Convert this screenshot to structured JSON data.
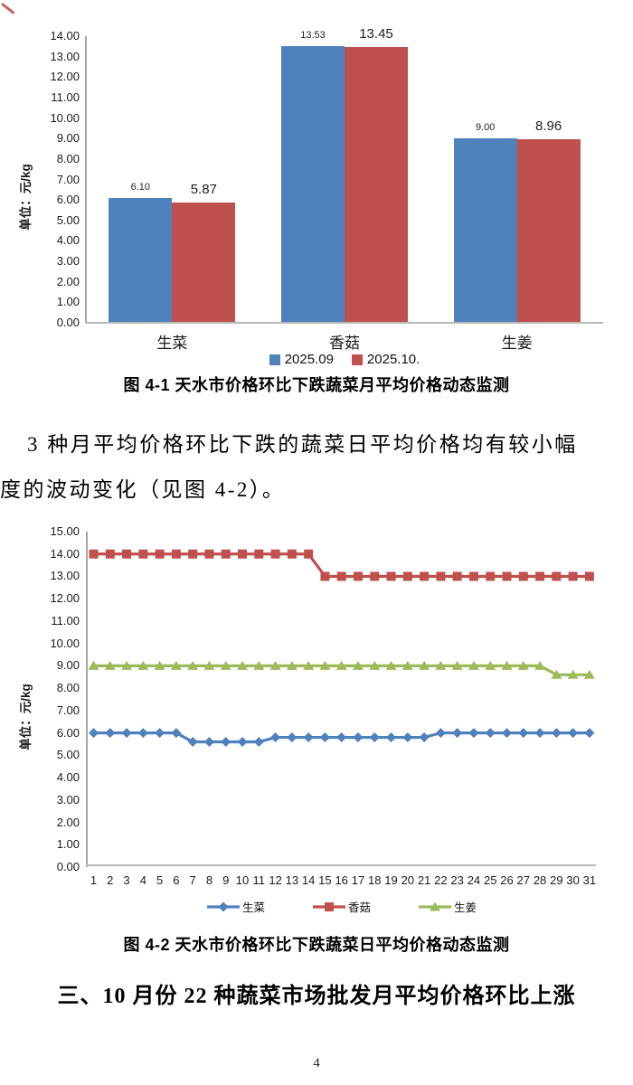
{
  "page": {
    "number": "4"
  },
  "paragraph": {
    "line1": "3 种月平均价格环比下跌的蔬菜日平均价格均有较小幅",
    "line2": "度的波动变化（见图 4-2）。"
  },
  "section_heading": "三、10 月份 22 种蔬菜市场批发月平均价格环比上涨",
  "colors": {
    "blue": "#4F81BD",
    "red": "#C0504D",
    "green": "#9BBB59",
    "axis": "#A6A6A6"
  },
  "chart_data": [
    {
      "type": "bar",
      "title": "图 4-1  天水市价格环比下跌蔬菜月平均价格动态监测",
      "ylabel": "单位：元/kg",
      "categories": [
        "生菜",
        "香菇",
        "生姜"
      ],
      "series": [
        {
          "name": "2025.09",
          "color": "#4F81BD",
          "values": [
            6.1,
            13.53,
            9.0
          ],
          "value_labels": [
            "6.10",
            "13.53",
            "9.00"
          ],
          "label_size": "small"
        },
        {
          "name": "2025.10.",
          "color": "#C0504D",
          "values": [
            5.87,
            13.45,
            8.96
          ],
          "value_labels": [
            "5.87",
            "13.45",
            "8.96"
          ],
          "label_size": "large"
        }
      ],
      "ylim": [
        0,
        14
      ],
      "yticks": [
        "14.00",
        "13.00",
        "12.00",
        "11.00",
        "10.00",
        "9.00",
        "8.00",
        "7.00",
        "6.00",
        "5.00",
        "4.00",
        "3.00",
        "2.00",
        "1.00",
        "0.00"
      ],
      "grid": false,
      "legend_position": "bottom"
    },
    {
      "type": "line",
      "title": "图 4-2  天水市价格环比下跌蔬菜日平均价格动态监测",
      "ylabel": "单位：元/kg",
      "x": [
        1,
        2,
        3,
        4,
        5,
        6,
        7,
        8,
        9,
        10,
        11,
        12,
        13,
        14,
        15,
        16,
        17,
        18,
        19,
        20,
        21,
        22,
        23,
        24,
        25,
        26,
        27,
        28,
        29,
        30,
        31
      ],
      "series": [
        {
          "name": "生菜",
          "color": "#4F81BD",
          "marker": "diamond",
          "values": [
            6,
            6,
            6,
            6,
            6,
            6,
            5.6,
            5.6,
            5.6,
            5.6,
            5.6,
            5.8,
            5.8,
            5.8,
            5.8,
            5.8,
            5.8,
            5.8,
            5.8,
            5.8,
            5.8,
            6,
            6,
            6,
            6,
            6,
            6,
            6,
            6,
            6,
            6
          ]
        },
        {
          "name": "香菇",
          "color": "#C0504D",
          "marker": "square",
          "values": [
            14,
            14,
            14,
            14,
            14,
            14,
            14,
            14,
            14,
            14,
            14,
            14,
            14,
            14,
            13,
            13,
            13,
            13,
            13,
            13,
            13,
            13,
            13,
            13,
            13,
            13,
            13,
            13,
            13,
            13,
            13
          ]
        },
        {
          "name": "生姜",
          "color": "#9BBB59",
          "marker": "triangle",
          "values": [
            9,
            9,
            9,
            9,
            9,
            9,
            9,
            9,
            9,
            9,
            9,
            9,
            9,
            9,
            9,
            9,
            9,
            9,
            9,
            9,
            9,
            9,
            9,
            9,
            9,
            9,
            9,
            9,
            8.6,
            8.6,
            8.6
          ]
        }
      ],
      "ylim": [
        0,
        15
      ],
      "yticks": [
        "15.00",
        "14.00",
        "13.00",
        "12.00",
        "11.00",
        "10.00",
        "9.00",
        "8.00",
        "7.00",
        "6.00",
        "5.00",
        "4.00",
        "3.00",
        "2.00",
        "1.00",
        "0.00"
      ],
      "grid": false,
      "legend_position": "bottom"
    }
  ]
}
